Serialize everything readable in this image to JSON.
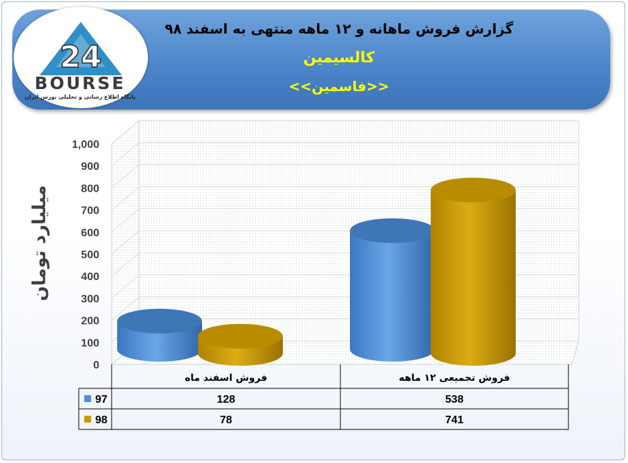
{
  "header": {
    "title": "گزارش فروش ماهانه و ۱۲ ماهه منتهی به اسفند ۹۸",
    "company": "کالسیمین",
    "symbol": "<<فاسمین>>"
  },
  "logo": {
    "wordmark": "BOURSE",
    "number": "24",
    "tagline": "پایگاه اطلاع رسانی و تحلیلی بورس ایران"
  },
  "colors": {
    "series_97": "#4f8fd6",
    "series_98": "#c99a00",
    "header_bg": "#4d86cb"
  },
  "chart_data": {
    "type": "bar",
    "ylabel": "میلیارد تومان",
    "ylim": [
      0,
      1000
    ],
    "yticks": [
      "0",
      "100",
      "200",
      "300",
      "400",
      "500",
      "600",
      "700",
      "800",
      "900",
      "1,000"
    ],
    "categories": [
      "فروش اسفند ماه",
      "فروش تجمیعی ۱۲ ماهه"
    ],
    "series": [
      {
        "name": "97",
        "values": [
          128,
          538
        ],
        "color": "#4f8fd6"
      },
      {
        "name": "98",
        "values": [
          78,
          741
        ],
        "color": "#c99a00"
      }
    ],
    "table": {
      "rows": [
        {
          "name": "97",
          "cells": [
            "128",
            "538"
          ]
        },
        {
          "name": "98",
          "cells": [
            "78",
            "741"
          ]
        }
      ]
    },
    "grid": true,
    "legend": "data-table"
  }
}
